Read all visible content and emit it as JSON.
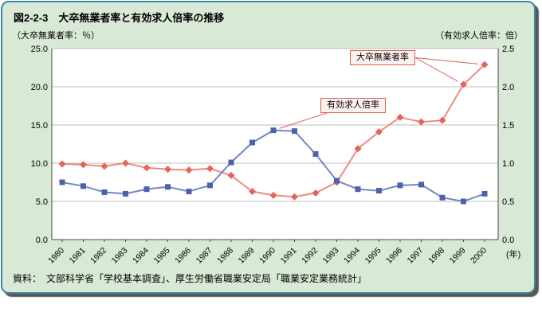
{
  "title": "図2-2-3　大卒無業者率と有効求人倍率の推移",
  "left_axis_caption": "（大卒無業者率：％）",
  "right_axis_caption": "（有効求人倍率：倍）",
  "x_unit_label": "(年)",
  "source": "資料：　文部科学省「学校基本調査」、厚生労働省職業安定局「職業安定業務統計」",
  "callouts": [
    {
      "label": "大卒無業者率",
      "series": 0,
      "target_indices": [
        19,
        20
      ]
    },
    {
      "label": "有効求人倍率",
      "series": 1,
      "target_indices": [
        10
      ]
    }
  ],
  "colors": {
    "panel_background": "#d8e9d5",
    "panel_border": "#3e86a0",
    "plot_background": "#ffffff",
    "gridline": "#bcbcbc",
    "axis": "#4a4a4a",
    "callout_border": "#dd5f55"
  },
  "chart_data": {
    "type": "line",
    "title": "大卒無業者率と有効求人倍率の推移",
    "xlabel": "(年)",
    "ylabel_left": "大卒無業者率：％",
    "ylabel_right": "有効求人倍率：倍",
    "grid": true,
    "legend_position": "callout-labels",
    "categories": [
      "1980",
      "1981",
      "1982",
      "1983",
      "1984",
      "1985",
      "1986",
      "1987",
      "1988",
      "1989",
      "1990",
      "1991",
      "1992",
      "1993",
      "1994",
      "1995",
      "1996",
      "1997",
      "1998",
      "1999",
      "2000"
    ],
    "left_axis": {
      "min": 0,
      "max": 25,
      "ticks": [
        "25.0",
        "20.0",
        "15.0",
        "10.0",
        "5.0",
        "0.0"
      ]
    },
    "right_axis": {
      "min": 0,
      "max": 2.5,
      "ticks": [
        "2.5",
        "2.0",
        "1.5",
        "1.0",
        "0.5",
        "0.0"
      ]
    },
    "series": [
      {
        "name": "大卒無業者率",
        "axis": "left",
        "marker": "diamond",
        "color": "#ef8a80",
        "marker_color": "#e8625b",
        "values": [
          9.9,
          9.8,
          9.6,
          10.0,
          9.4,
          9.2,
          9.1,
          9.3,
          8.4,
          6.3,
          5.8,
          5.6,
          6.1,
          7.5,
          11.9,
          14.1,
          16.0,
          15.4,
          15.6,
          20.3,
          22.9
        ]
      },
      {
        "name": "有効求人倍率",
        "axis": "right",
        "marker": "square",
        "color": "#7486c5",
        "marker_color": "#4a63ad",
        "values": [
          0.75,
          0.7,
          0.62,
          0.6,
          0.66,
          0.69,
          0.63,
          0.71,
          1.01,
          1.27,
          1.43,
          1.42,
          1.12,
          0.77,
          0.66,
          0.64,
          0.71,
          0.72,
          0.55,
          0.5,
          0.6
        ]
      }
    ]
  }
}
